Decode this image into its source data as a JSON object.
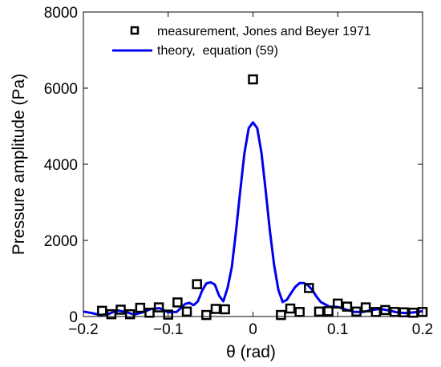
{
  "chart_data": {
    "type": "line",
    "title": "",
    "xlabel": "θ (rad)",
    "ylabel": "Pressure amplitude (Pa)",
    "xlim": [
      -0.2,
      0.2
    ],
    "ylim": [
      0,
      8000
    ],
    "xticks": [
      -0.2,
      -0.1,
      0,
      0.1,
      0.2
    ],
    "xtick_labels": [
      "−0.2",
      "−0.1",
      "0",
      "0.1",
      "0.2"
    ],
    "yticks": [
      0,
      2000,
      4000,
      6000,
      8000
    ],
    "ytick_labels": [
      "0",
      "2000",
      "4000",
      "6000",
      "8000"
    ],
    "grid": false,
    "legend_position": "top-right",
    "series": [
      {
        "name": "measurement, Jones and Beyer 1971",
        "kind": "scatter",
        "marker": "square",
        "color": "#000000",
        "x": [
          -0.178,
          -0.167,
          -0.156,
          -0.145,
          -0.133,
          -0.122,
          -0.111,
          -0.1,
          -0.089,
          -0.078,
          -0.066,
          -0.055,
          -0.044,
          -0.033,
          0.0,
          0.033,
          0.044,
          0.055,
          0.066,
          0.078,
          0.089,
          0.1,
          0.111,
          0.122,
          0.133,
          0.145,
          0.156,
          0.167,
          0.178,
          0.189,
          0.2
        ],
        "y": [
          150,
          60,
          180,
          60,
          230,
          100,
          240,
          50,
          370,
          130,
          850,
          40,
          200,
          190,
          6230,
          40,
          210,
          120,
          750,
          130,
          140,
          340,
          260,
          130,
          240,
          120,
          170,
          120,
          110,
          100,
          120
        ]
      },
      {
        "name": "theory,  equation (59)",
        "kind": "line",
        "color": "#0000ee",
        "x": [
          -0.2,
          -0.19,
          -0.18,
          -0.17,
          -0.16,
          -0.15,
          -0.14,
          -0.13,
          -0.12,
          -0.11,
          -0.1,
          -0.09,
          -0.08,
          -0.075,
          -0.07,
          -0.065,
          -0.06,
          -0.055,
          -0.05,
          -0.045,
          -0.04,
          -0.035,
          -0.03,
          -0.025,
          -0.02,
          -0.015,
          -0.01,
          -0.005,
          0,
          0.005,
          0.01,
          0.015,
          0.02,
          0.025,
          0.03,
          0.035,
          0.04,
          0.045,
          0.05,
          0.055,
          0.06,
          0.065,
          0.07,
          0.075,
          0.08,
          0.09,
          0.1,
          0.11,
          0.12,
          0.13,
          0.14,
          0.15,
          0.16,
          0.17,
          0.18,
          0.19,
          0.2
        ],
        "y": [
          130,
          90,
          40,
          70,
          160,
          120,
          50,
          110,
          200,
          220,
          110,
          120,
          330,
          360,
          300,
          400,
          680,
          870,
          900,
          840,
          550,
          400,
          750,
          1300,
          2250,
          3300,
          4300,
          4950,
          5100,
          4950,
          4300,
          3300,
          2250,
          1350,
          700,
          380,
          440,
          620,
          780,
          880,
          880,
          820,
          700,
          520,
          380,
          260,
          250,
          180,
          120,
          120,
          170,
          200,
          160,
          110,
          90,
          110,
          140
        ]
      }
    ]
  }
}
